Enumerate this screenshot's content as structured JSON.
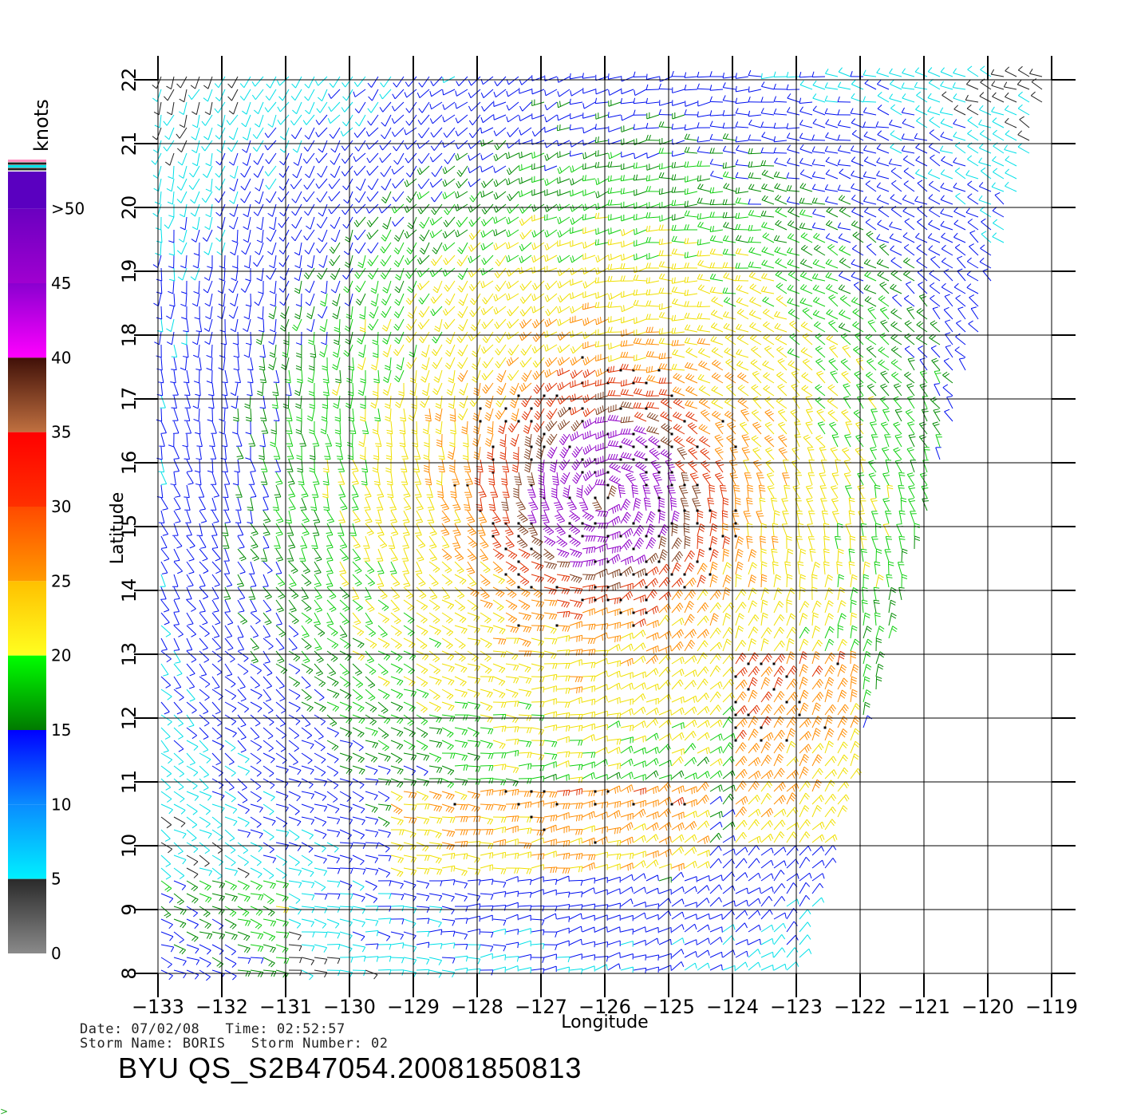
{
  "map": {
    "lon_ticks": [
      "-133",
      "-132",
      "-131",
      "-130",
      "-129",
      "-128",
      "-127",
      "-126",
      "-125",
      "-124",
      "-123",
      "-122",
      "-121",
      "-120",
      "-119"
    ],
    "lat_ticks": [
      "8",
      "9",
      "10",
      "11",
      "12",
      "13",
      "14",
      "15",
      "16",
      "17",
      "18",
      "19",
      "20",
      "21",
      "22"
    ],
    "lon_range": [
      -133,
      -119
    ],
    "lat_range": [
      8,
      22
    ],
    "xlabel": "Longitude",
    "ylabel": "Latitude",
    "storm_center": {
      "lon": -126.0,
      "lat": 15.5
    },
    "swath_east_edge": {
      "south_lon": -123.0,
      "north_lon": -119.0
    }
  },
  "legend": {
    "unit": "knots",
    "bins": [
      {
        "label": "0",
        "colors": [
          "#8a8a8a",
          "#2a2a2a"
        ]
      },
      {
        "label": "5",
        "colors": [
          "#00f0ff",
          "#0a8cff"
        ]
      },
      {
        "label": "10",
        "colors": [
          "#0a8cff",
          "#0000ff"
        ]
      },
      {
        "label": "15",
        "colors": [
          "#007a00",
          "#00ff00"
        ]
      },
      {
        "label": "20",
        "colors": [
          "#ffff20",
          "#ffc000"
        ]
      },
      {
        "label": "25",
        "colors": [
          "#ff9a00",
          "#ff4a00"
        ]
      },
      {
        "label": "30",
        "colors": [
          "#ff3000",
          "#ff0000"
        ]
      },
      {
        "label": "35",
        "colors": [
          "#c07040",
          "#401008"
        ]
      },
      {
        "label": "40",
        "colors": [
          "#ff00ff",
          "#8a00d0"
        ]
      },
      {
        "label": "45",
        "colors": [
          "#a000d0",
          "#6a00c0"
        ]
      },
      {
        "label": ">50",
        "colors": [
          "#5a00c0",
          "#5a00c0"
        ]
      }
    ],
    "colors": {
      "black": "#202020",
      "cyan": "#00e0e8",
      "blue": "#0010f0",
      "dark_green": "#008a00",
      "green": "#10d010",
      "yellow": "#f0e000",
      "orange": "#ff8c00",
      "red": "#e03000",
      "brown": "#804020",
      "purple": "#9000c8"
    }
  },
  "footer": {
    "date_line": "Date: 07/02/08   Time: 02:52:57",
    "storm_line": "Storm Name: BORIS   Storm Number: 02",
    "file_id": "BYU QS_S2B47054.20081850813"
  },
  "corner_mark": ">"
}
